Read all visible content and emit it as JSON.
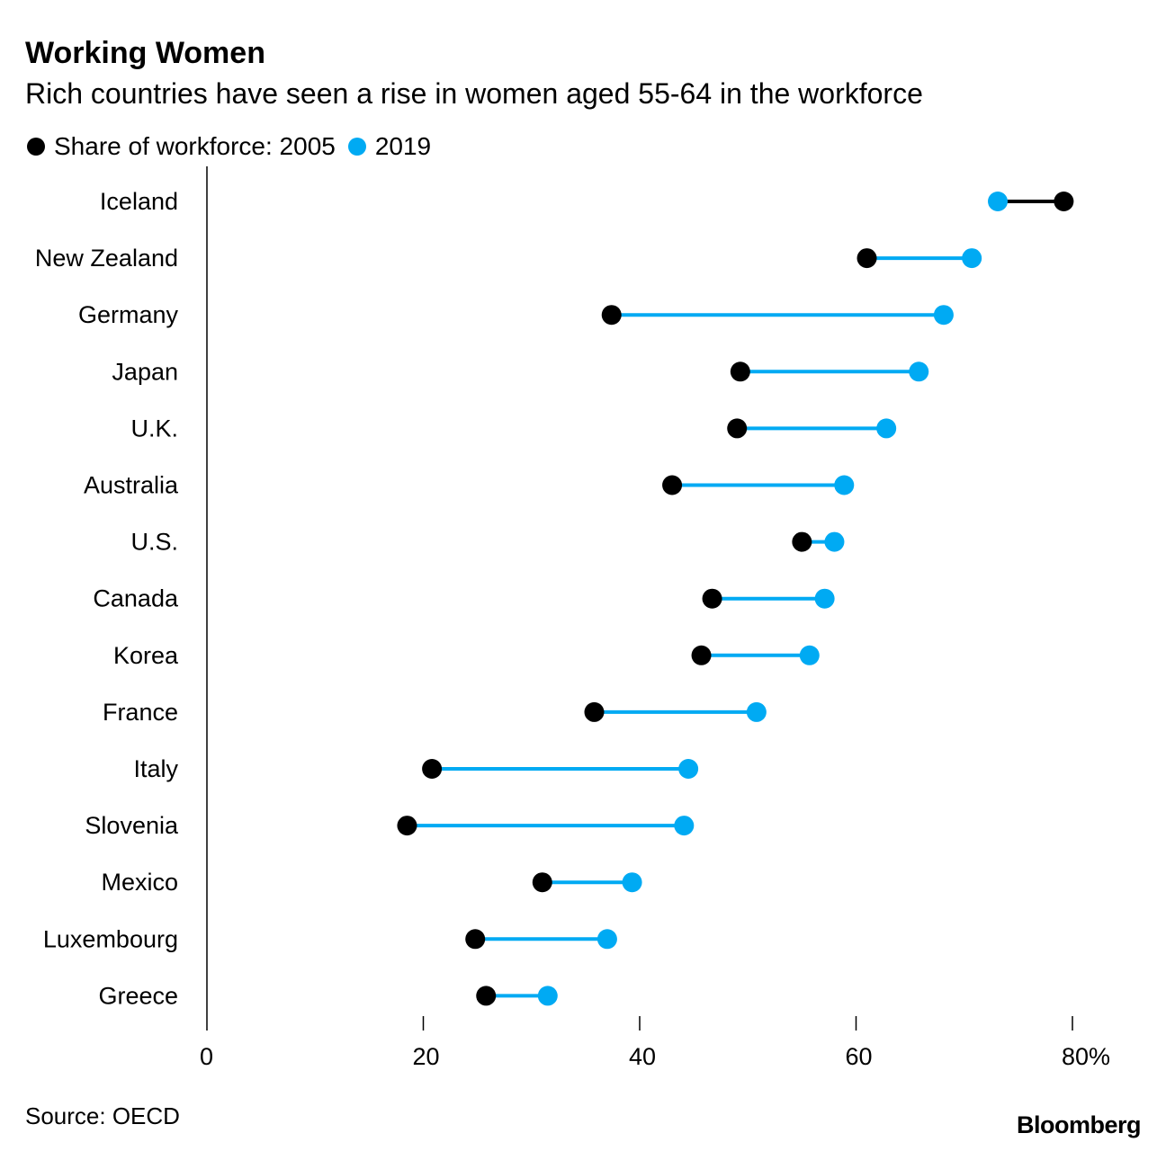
{
  "header": {
    "title": "Working Women",
    "subtitle": "Rich countries have seen a rise in women aged 55-64 in the workforce"
  },
  "legend": {
    "series_2005": "Share of workforce: 2005",
    "series_2019": "2019"
  },
  "footer": {
    "source": "Source: OECD",
    "brand": "Bloomberg"
  },
  "colors": {
    "series_2005": "#000000",
    "series_2019": "#00aaf3",
    "axis": "#000000"
  },
  "chart_data": {
    "type": "dumbbell",
    "title": "Working Women",
    "subtitle": "Rich countries have seen a rise in women aged 55-64 in the workforce",
    "xlabel": "",
    "ylabel": "",
    "xlim": [
      0,
      80
    ],
    "x_ticks": [
      0,
      20,
      40,
      60,
      80
    ],
    "x_tick_labels": [
      "0",
      "20",
      "40",
      "60",
      "80%"
    ],
    "categories": [
      "Iceland",
      "New Zealand",
      "Germany",
      "Japan",
      "U.K.",
      "Australia",
      "U.S.",
      "Canada",
      "Korea",
      "France",
      "Italy",
      "Slovenia",
      "Mexico",
      "Luxembourg",
      "Greece"
    ],
    "series": [
      {
        "name": "Share of workforce: 2005",
        "values": [
          79.2,
          61.0,
          37.4,
          49.3,
          49.0,
          43.0,
          55.0,
          46.7,
          45.7,
          35.8,
          20.8,
          18.5,
          31.0,
          24.8,
          25.8
        ]
      },
      {
        "name": "2019",
        "values": [
          73.1,
          70.7,
          68.1,
          65.8,
          62.8,
          58.9,
          58.0,
          57.1,
          55.7,
          50.8,
          44.5,
          44.1,
          39.3,
          37.0,
          31.5
        ]
      }
    ]
  }
}
